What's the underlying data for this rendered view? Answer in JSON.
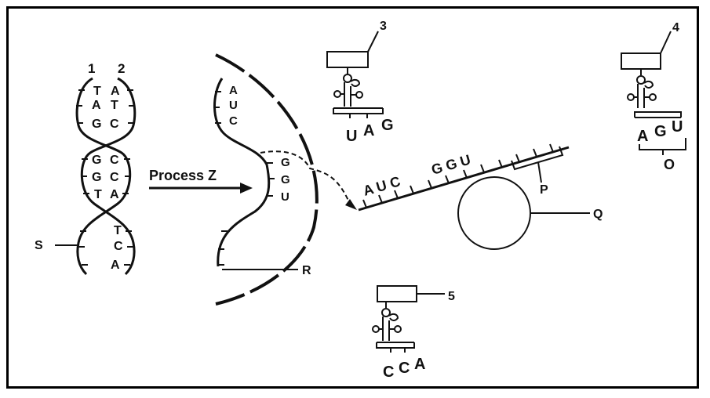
{
  "labels": {
    "strand1": "1",
    "strand2": "2",
    "S": "S",
    "process": "Process Z",
    "R": "R",
    "P": "P",
    "Q": "Q",
    "O": "O",
    "trna3": "3",
    "trna4": "4",
    "trna5": "5"
  },
  "dna_bases": {
    "pair1": [
      "T",
      "A"
    ],
    "pair2": [
      "A",
      "T"
    ],
    "pair3": [
      "G",
      "C"
    ],
    "pair4": [
      "G",
      "C"
    ],
    "pair5": [
      "G",
      "C"
    ],
    "pair6": [
      "T",
      "A"
    ],
    "lower": [
      "T",
      "C",
      "A"
    ]
  },
  "nucleus_mrna_bases": [
    "A",
    "U",
    "C",
    "G",
    "G",
    "U"
  ],
  "mrna_codons": [
    "A U C",
    "G G U"
  ],
  "anticodons": {
    "trna3": [
      "U",
      "A",
      "G"
    ],
    "trna4": [
      "A",
      "G",
      "U"
    ],
    "trna5": [
      "C",
      "C",
      "A"
    ]
  }
}
